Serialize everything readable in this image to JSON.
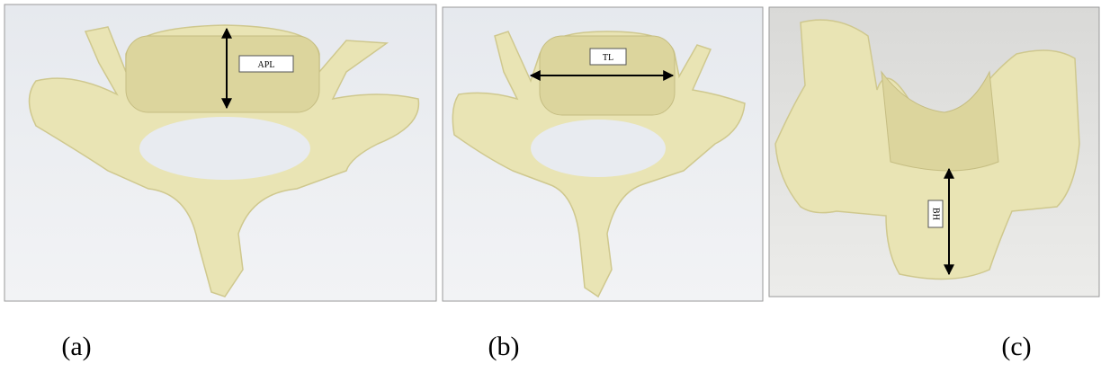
{
  "panels": [
    {
      "label": "(a)",
      "measure": "APL"
    },
    {
      "label": "(b)",
      "measure": "TL"
    },
    {
      "label": "(c)",
      "measure": "BH"
    }
  ]
}
